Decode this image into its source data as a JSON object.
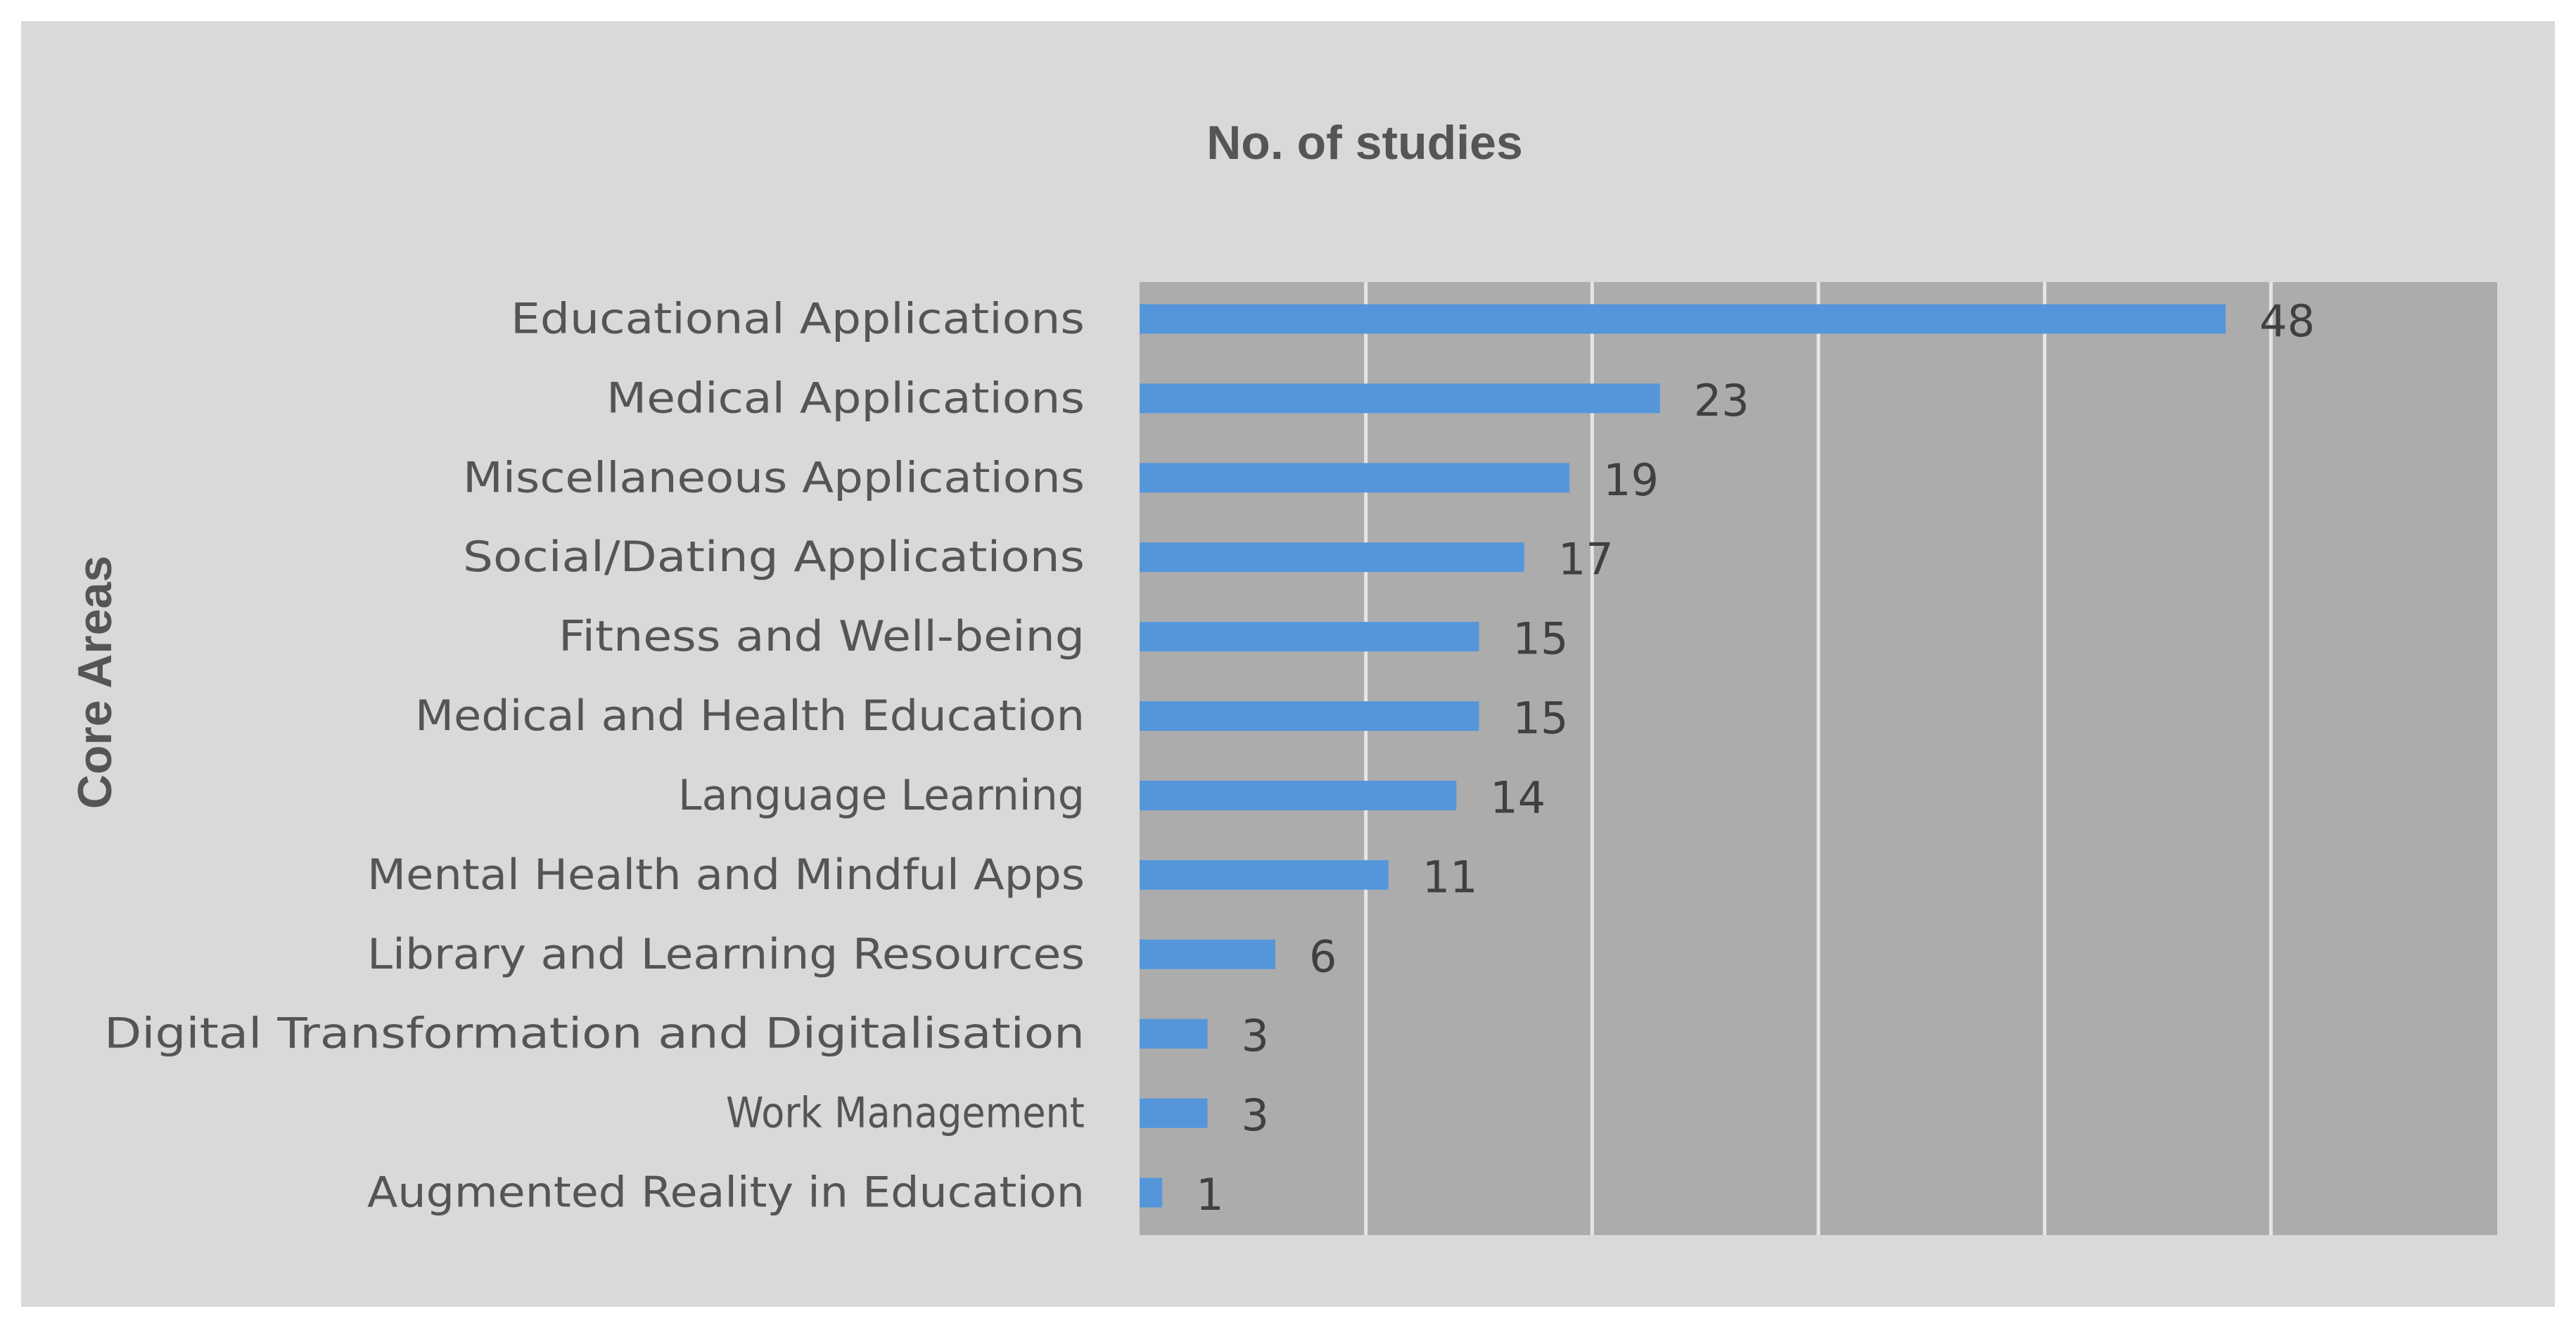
{
  "chart_data": {
    "type": "bar",
    "orientation": "horizontal",
    "title": "No. of studies",
    "xlabel": "",
    "ylabel": "Core Areas",
    "xlim": [
      0,
      60
    ],
    "x_gridline_step": 10,
    "grid": true,
    "legend": "none",
    "colors": {
      "bar": "#5596db",
      "plot_background": "#acacac",
      "card_background": "#d9d9d9",
      "gridline": "#e6e6e6",
      "text": "#555555"
    },
    "categories": [
      "Educational Applications",
      "Medical Applications",
      "Miscellaneous Applications",
      "Social/Dating Applications",
      "Fitness and Well-being",
      "Medical and Health Education",
      "Language Learning",
      "Mental Health and Mindful Apps",
      "Library and Learning Resources",
      "Digital Transformation and Digitalisation",
      "Work Management",
      "Augmented Reality in Education"
    ],
    "values": [
      48,
      23,
      19,
      17,
      15,
      15,
      14,
      11,
      6,
      3,
      3,
      1
    ]
  }
}
